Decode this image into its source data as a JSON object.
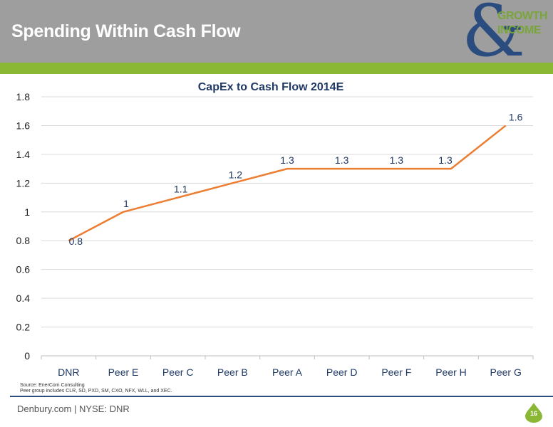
{
  "header": {
    "title": "Spending Within Cash Flow"
  },
  "logo": {
    "line1": "GROWTH",
    "line2": "INCOME"
  },
  "footer": {
    "source_line1": "Source: EnerCom Consulting",
    "source_line2": "Peer group includes CLR, SD, PXD, SM, CXO, NFX, WLL, and XEC.",
    "site": "Denbury.com | NYSE: DNR",
    "page_number": "16"
  },
  "colors": {
    "header_bg": "#9e9e9e",
    "accent_green": "#8ab835",
    "brand_blue": "#2b4c7e",
    "line": "#ed7d31",
    "label": "#1f3864"
  },
  "chart_data": {
    "type": "line",
    "title": "CapEx to Cash Flow 2014E",
    "categories": [
      "DNR",
      "Peer E",
      "Peer C",
      "Peer B",
      "Peer A",
      "Peer D",
      "Peer F",
      "Peer H",
      "Peer G"
    ],
    "values": [
      0.8,
      1,
      1.1,
      1.2,
      1.3,
      1.3,
      1.3,
      1.3,
      1.6
    ],
    "data_labels": [
      "0.8",
      "1",
      "1.1",
      "1.2",
      "1.3",
      "1.3",
      "1.3",
      "1.3",
      "1.6"
    ],
    "ylim": [
      0,
      1.8
    ],
    "yticks": [
      "0",
      "0.2",
      "0.4",
      "0.6",
      "0.8",
      "1",
      "1.2",
      "1.4",
      "1.6",
      "1.8"
    ],
    "grid": true,
    "legend": "none"
  }
}
